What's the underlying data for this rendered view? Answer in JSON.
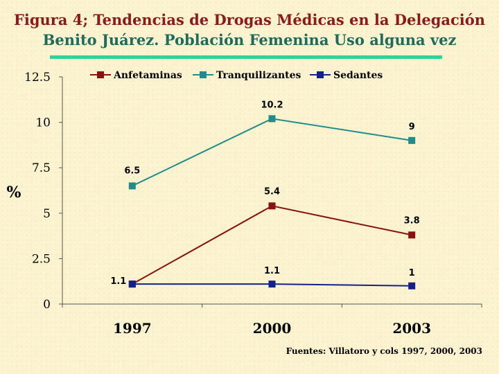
{
  "title_line1": "Figura 4; Tendencias de Drogas Médicas en  la Delegación",
  "title_line2": "Benito Juárez. Población Femenina Uso alguna vez",
  "source": "Fuentes: Villatoro y cols 1997, 2000, 2003",
  "colors": {
    "title": "#8b1a1a",
    "subtitle": "#1e6b5c",
    "rule": "#2ed39a"
  },
  "chart_data": {
    "type": "line",
    "ylabel": "%",
    "xlabel": "",
    "ylim": [
      0,
      12.5
    ],
    "yticks": [
      "0",
      "2.5",
      "5",
      "7.5",
      "10",
      "12.5"
    ],
    "categories": [
      "1997",
      "2000",
      "2003"
    ],
    "legend_position": "top",
    "grid": false,
    "series": [
      {
        "name": "Anfetaminas",
        "color": "#8b1010",
        "values": [
          1.1,
          5.4,
          3.8
        ],
        "labels": [
          "",
          "5.4",
          "3.8"
        ]
      },
      {
        "name": "Tranquilizantes",
        "color": "#1f8c8c",
        "values": [
          6.5,
          10.2,
          9
        ],
        "labels": [
          "6.5",
          "10.2",
          "9"
        ]
      },
      {
        "name": "Sedantes",
        "color": "#14208c",
        "values": [
          1.1,
          1.1,
          1
        ],
        "labels": [
          "1.1",
          "1.1",
          "1"
        ]
      }
    ]
  }
}
